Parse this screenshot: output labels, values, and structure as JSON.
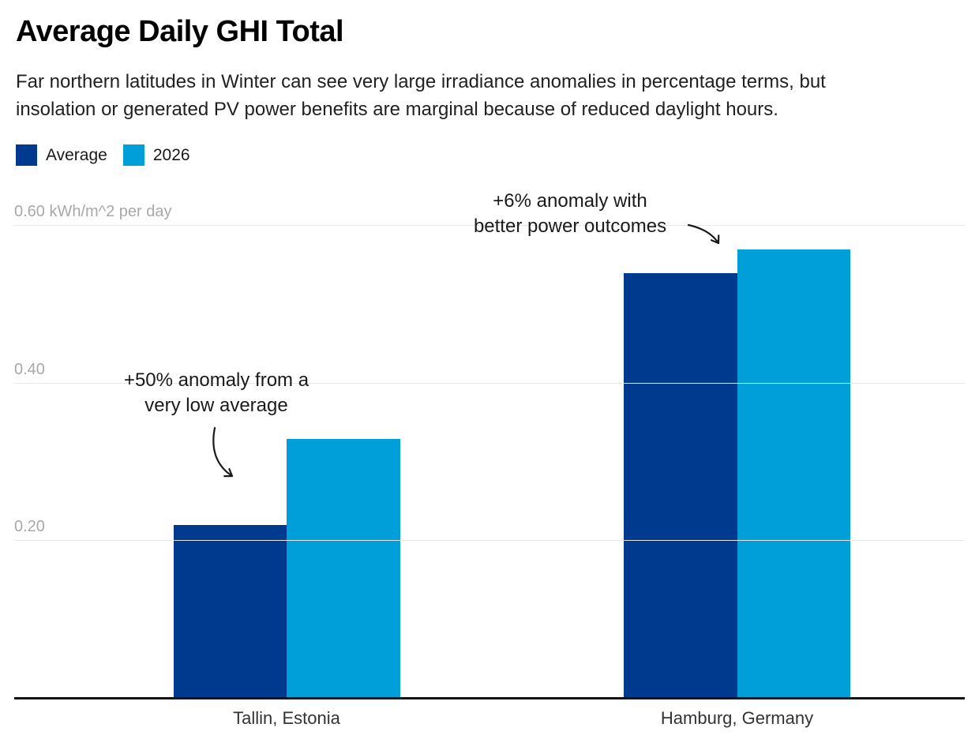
{
  "page": {
    "background": "#ffffff"
  },
  "header": {
    "title": "Average Daily GHI Total",
    "subtitle": "Far northern latitudes in Winter can see very large irradiance anomalies in percentage terms, but\ninsolation or generated PV power benefits are marginal because of reduced daylight hours."
  },
  "colors": {
    "series_average": "#003a8f",
    "series_2026": "#009fd9",
    "gridline": "#e7e7e7",
    "axis_line": "#141414",
    "tick_label": "#a8a8a8",
    "annotation_text": "#1a1a1a"
  },
  "chart_data": {
    "type": "bar",
    "title": "Average Daily GHI Total",
    "subtitle": "Far northern latitudes in Winter can see very large irradiance anomalies in percentage terms, but insolation or generated PV power benefits are marginal because of reduced daylight hours.",
    "unit": "kWh/m^2 per day",
    "categories": [
      "Tallin, Estonia",
      "Hamburg, Germany"
    ],
    "series": [
      {
        "name": "Average",
        "color": "#003a8f",
        "values": [
          0.22,
          0.54
        ]
      },
      {
        "name": "2026",
        "color": "#009fd9",
        "values": [
          0.33,
          0.57
        ]
      }
    ],
    "ylim": [
      0,
      0.62
    ],
    "yticks": [
      {
        "value": 0.2,
        "label": "0.20"
      },
      {
        "value": 0.4,
        "label": "0.40"
      },
      {
        "value": 0.6,
        "label": "0.60 kWh/m^2 per day"
      }
    ],
    "grid": true,
    "legend_position": "top-left",
    "annotations": [
      {
        "lines": [
          "+50% anomaly from a",
          "very low average"
        ],
        "target_series": "2026",
        "target_category": "Tallin, Estonia"
      },
      {
        "lines": [
          "+6% anomaly with",
          "better power outcomes"
        ],
        "target_series": "2026",
        "target_category": "Hamburg, Germany"
      }
    ]
  }
}
